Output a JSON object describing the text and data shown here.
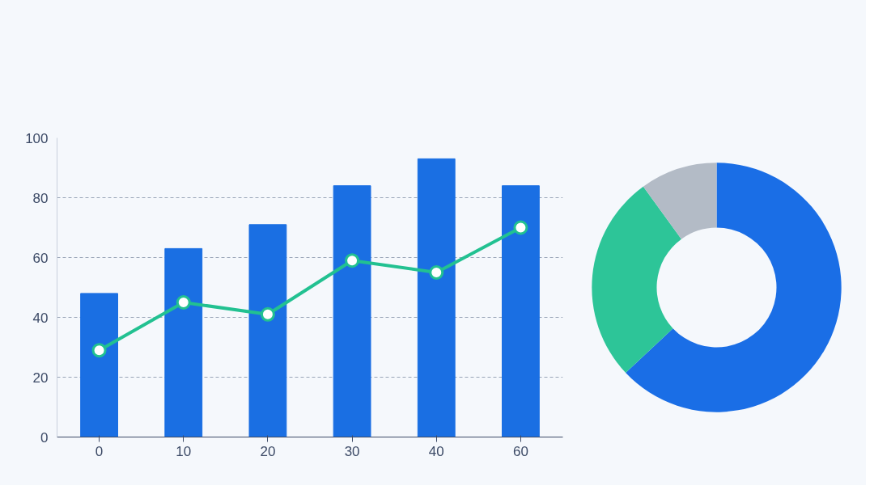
{
  "chart_data": [
    {
      "type": "bar",
      "categories": [
        "0",
        "10",
        "20",
        "30",
        "40",
        "60"
      ],
      "series": [
        {
          "type": "bar",
          "color": "#1a6fe3",
          "values": [
            48,
            63,
            71,
            84,
            93,
            84
          ]
        },
        {
          "type": "line",
          "color": "#22c191",
          "values": [
            29,
            45,
            41,
            59,
            55,
            70
          ],
          "marker": "circle"
        }
      ],
      "ylim": [
        0,
        100
      ],
      "yticks": [
        0,
        20,
        40,
        60,
        80,
        100
      ],
      "grid": "y",
      "line_style": "solid"
    },
    {
      "type": "donut",
      "categories": [
        null,
        null,
        null
      ],
      "values": [
        63,
        27,
        10
      ],
      "colors": [
        "#1a6ee6",
        "#2dc598",
        "#b3bbc6"
      ]
    }
  ]
}
